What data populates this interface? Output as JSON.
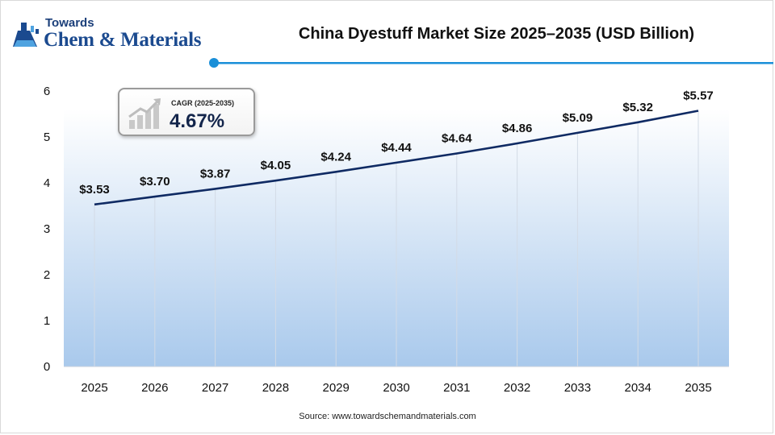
{
  "logo": {
    "top_text": "Towards",
    "main_text": "Chem & Materials",
    "icon": "flask-icon"
  },
  "header": {
    "title": "China Dyestuff Market Size 2025–2035 (USD Billion)"
  },
  "cagr": {
    "label": "CAGR (2025-2035)",
    "value": "4.67%",
    "icon": "growth-bars-icon"
  },
  "source": "Source: www.towardschemandmaterials.com",
  "colors": {
    "line": "#0f2a63",
    "accent": "#1a8fd8",
    "area_top": "#ffffff",
    "area_bottom": "#a9c9ec"
  },
  "chart_data": {
    "type": "area",
    "title": "China Dyestuff Market Size 2025–2035 (USD Billion)",
    "xlabel": "",
    "ylabel": "",
    "categories": [
      "2025",
      "2026",
      "2027",
      "2028",
      "2029",
      "2030",
      "2031",
      "2032",
      "2033",
      "2034",
      "2035"
    ],
    "values": [
      3.53,
      3.7,
      3.87,
      4.05,
      4.24,
      4.44,
      4.64,
      4.86,
      5.09,
      5.32,
      5.57
    ],
    "data_labels": [
      "$3.53",
      "$3.70",
      "$3.87",
      "$4.05",
      "$4.24",
      "$4.44",
      "$4.64",
      "$4.86",
      "$5.09",
      "$5.32",
      "$5.57"
    ],
    "ylim": [
      0,
      6
    ],
    "yticks": [
      "0",
      "1",
      "2",
      "3",
      "4",
      "5",
      "6"
    ],
    "grid": "vertical",
    "legend": "none"
  }
}
